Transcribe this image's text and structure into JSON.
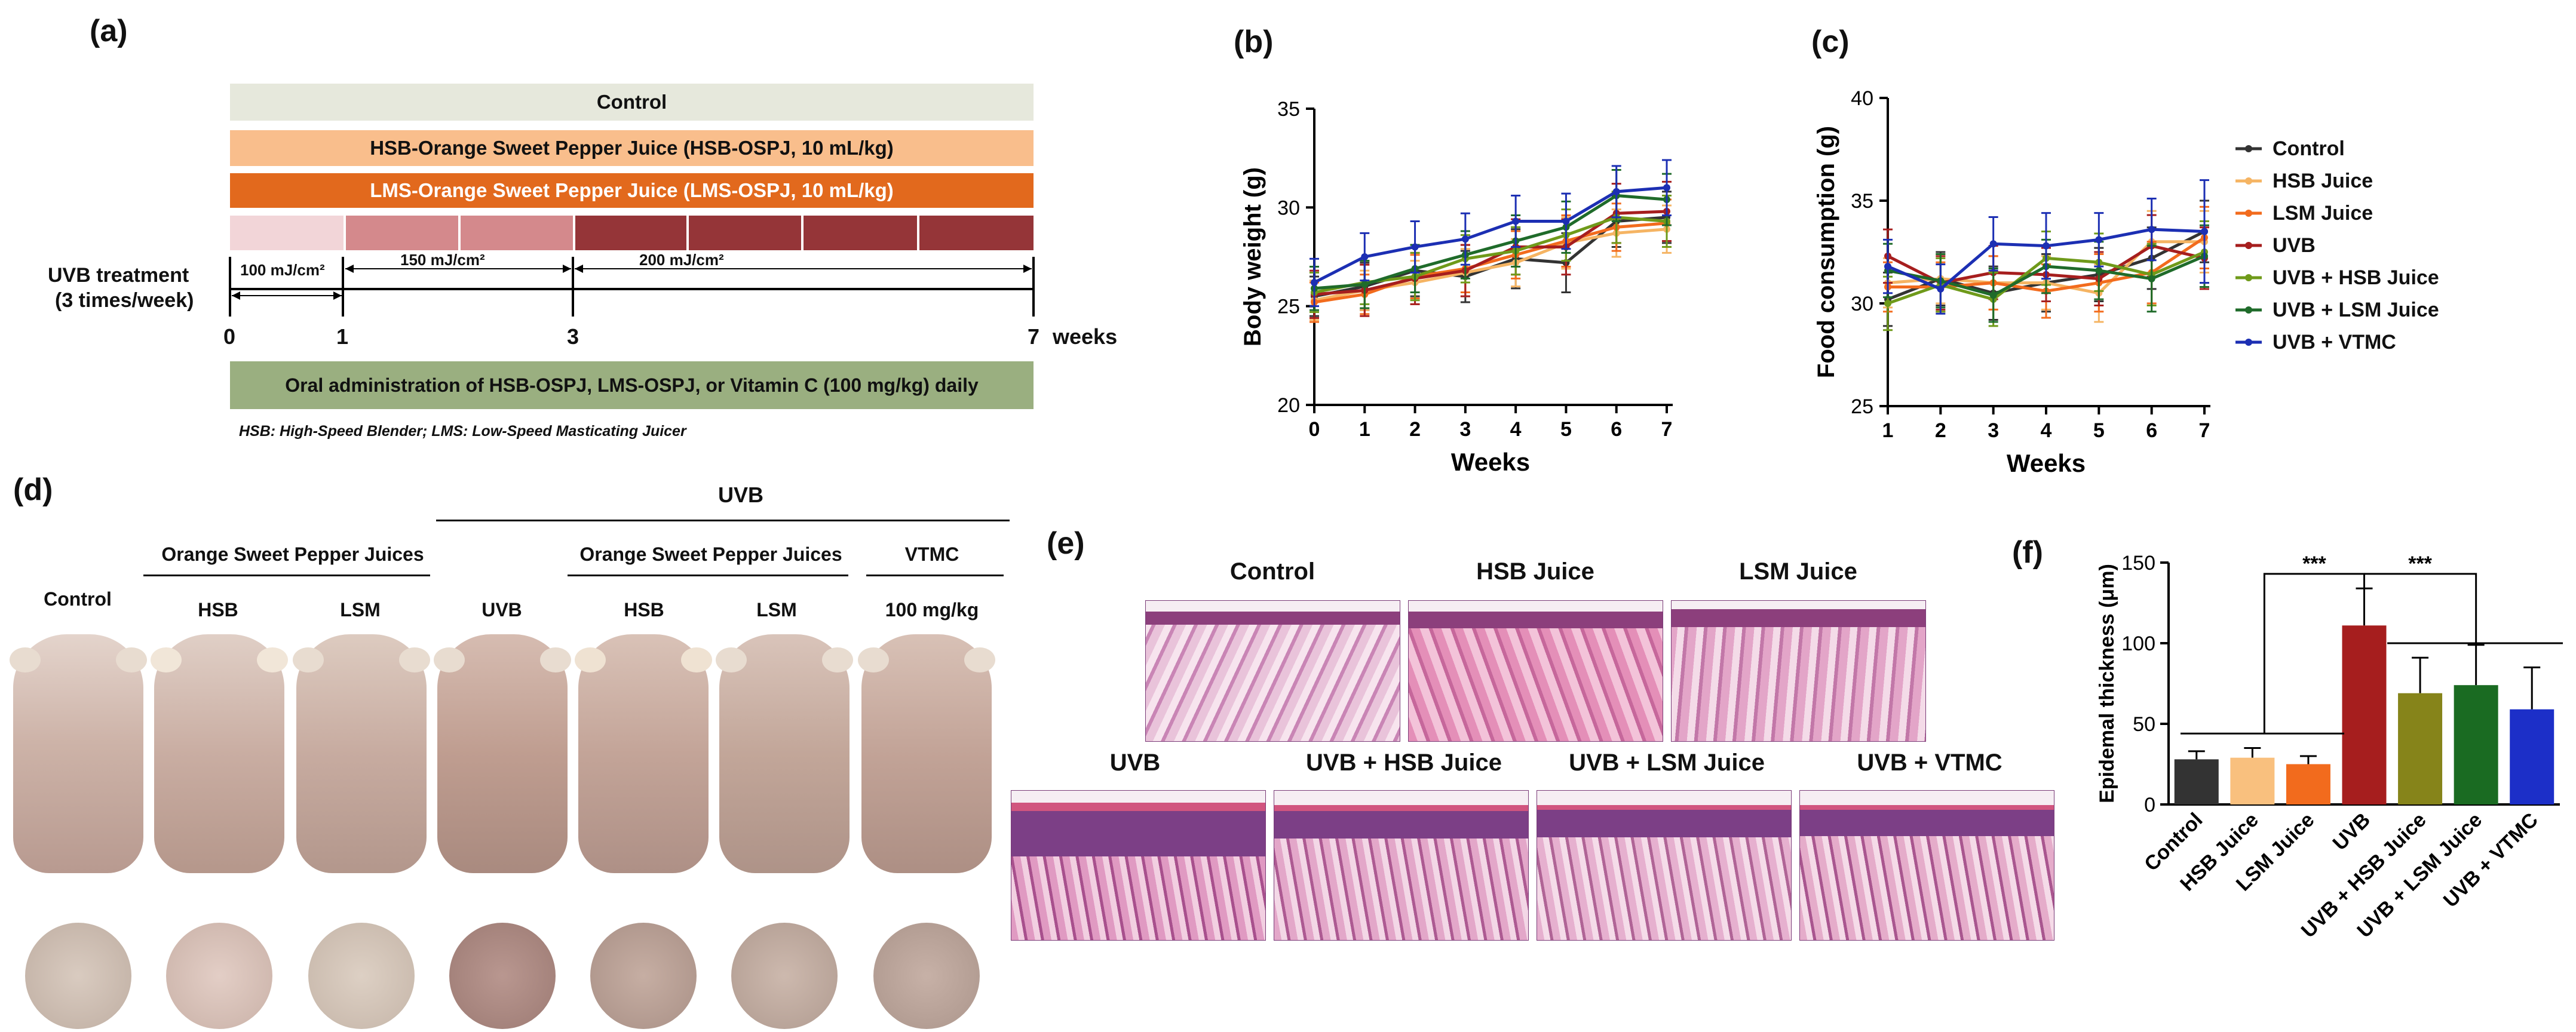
{
  "panel_a": {
    "label": "(a)",
    "bars": {
      "control": "Control",
      "hsb": "HSB-Orange Sweet Pepper Juice (HSB-OSPJ, 10 mL/kg)",
      "lms": "LMS-Orange Sweet Pepper Juice (LMS-OSPJ, 10 mL/kg)",
      "oral": "Oral administration of  HSB-OSPJ, LMS-OSPJ, or Vitamin C (100 mg/kg) daily"
    },
    "uvb_label_line1": "UVB treatment",
    "uvb_label_line2": "(3 times/week)",
    "dose1": "100 mJ/cm²",
    "dose2": "150 mJ/cm²",
    "dose3": "200 mJ/cm²",
    "ticks": [
      "0",
      "1",
      "3",
      "7"
    ],
    "weeks_label": "weeks",
    "footnote": "HSB: High-Speed Blender; LMS: Low-Speed Masticating Juicer",
    "colors": {
      "control": "#e6e8dc",
      "hsb": "#f9be8c",
      "lms": "#e2691d",
      "oral": "#9aaf80",
      "dose1": "#f2d5d8",
      "dose2": "#d4898c",
      "dose3": "#953538"
    }
  },
  "panel_b": {
    "label": "(b)"
  },
  "panel_c": {
    "label": "(c)"
  },
  "legend": {
    "entries": [
      {
        "name": "Control",
        "color": "#333333"
      },
      {
        "name": "HSB Juice",
        "color": "#f5b463"
      },
      {
        "name": "LSM Juice",
        "color": "#f26b1d"
      },
      {
        "name": "UVB",
        "color": "#a61e1e"
      },
      {
        "name": "UVB + HSB Juice",
        "color": "#6f9a1a"
      },
      {
        "name": "UVB + LSM Juice",
        "color": "#1f6b2a"
      },
      {
        "name": "UVB + VTMC",
        "color": "#1c2fb3"
      }
    ]
  },
  "panel_d": {
    "label": "(d)",
    "uvb_header": "UVB",
    "group_left": "Orange Sweet Pepper Juices",
    "group_right": "Orange Sweet Pepper Juices",
    "group_vtmc": "VTMC",
    "columns": [
      "Control",
      "HSB",
      "LSM",
      "UVB",
      "HSB",
      "LSM",
      "100 mg/kg"
    ]
  },
  "panel_e": {
    "label": "(e)",
    "top": [
      "Control",
      "HSB Juice",
      "LSM Juice"
    ],
    "bottom": [
      "UVB",
      "UVB + HSB Juice",
      "UVB + LSM Juice",
      "UVB + VTMC"
    ]
  },
  "panel_f": {
    "label": "(f)",
    "sig1": "***",
    "sig2": "***"
  },
  "chart_data": [
    {
      "type": "line",
      "title": "(b)",
      "xlabel": "Weeks",
      "ylabel": "Body weight (g)",
      "x": [
        0,
        1,
        2,
        3,
        4,
        5,
        6,
        7
      ],
      "xlim": [
        0,
        7
      ],
      "ylim": [
        20,
        35
      ],
      "yticks": [
        20,
        25,
        30,
        35
      ],
      "series": [
        {
          "name": "Control",
          "color": "#333333",
          "values": [
            25.5,
            26.0,
            26.8,
            26.5,
            27.4,
            27.2,
            29.3,
            29.5
          ],
          "err": [
            1.0,
            1.2,
            1.3,
            1.3,
            1.5,
            1.5,
            1.3,
            1.3
          ]
        },
        {
          "name": "HSB Juice",
          "color": "#f5b463",
          "values": [
            25.3,
            25.8,
            26.2,
            26.7,
            27.2,
            28.2,
            28.7,
            28.9
          ],
          "err": [
            1.0,
            1.0,
            1.1,
            1.2,
            1.2,
            1.3,
            1.2,
            1.2
          ]
        },
        {
          "name": "LSM Juice",
          "color": "#f26b1d",
          "values": [
            25.2,
            25.6,
            26.5,
            26.9,
            27.6,
            28.3,
            29.0,
            29.2
          ],
          "err": [
            1.0,
            1.0,
            1.1,
            1.2,
            1.2,
            1.3,
            1.2,
            1.2
          ]
        },
        {
          "name": "UVB",
          "color": "#a61e1e",
          "values": [
            25.6,
            25.8,
            26.4,
            26.8,
            28.0,
            28.0,
            29.7,
            29.8
          ],
          "err": [
            1.2,
            1.3,
            1.3,
            1.3,
            1.4,
            1.4,
            1.5,
            1.5
          ]
        },
        {
          "name": "UVB + HSB Juice",
          "color": "#6f9a1a",
          "values": [
            25.7,
            26.2,
            26.5,
            27.4,
            27.8,
            28.6,
            29.5,
            29.3
          ],
          "err": [
            1.0,
            1.1,
            1.2,
            1.2,
            1.2,
            1.3,
            1.3,
            1.3
          ]
        },
        {
          "name": "UVB + LSM Juice",
          "color": "#1f6b2a",
          "values": [
            25.9,
            26.1,
            26.9,
            27.6,
            28.3,
            29.0,
            30.6,
            30.4
          ],
          "err": [
            1.1,
            1.2,
            1.2,
            1.2,
            1.3,
            1.3,
            1.3,
            1.3
          ]
        },
        {
          "name": "UVB + VTMC",
          "color": "#1c2fb3",
          "values": [
            26.2,
            27.5,
            28.0,
            28.4,
            29.3,
            29.3,
            30.8,
            31.0
          ],
          "err": [
            1.2,
            1.2,
            1.3,
            1.3,
            1.3,
            1.4,
            1.3,
            1.4
          ]
        }
      ]
    },
    {
      "type": "line",
      "title": "(c)",
      "xlabel": "Weeks",
      "ylabel": "Food consumption (g)",
      "x": [
        1,
        2,
        3,
        4,
        5,
        6,
        7
      ],
      "xlim": [
        1,
        7
      ],
      "ylim": [
        25,
        40
      ],
      "yticks": [
        25,
        30,
        35,
        40
      ],
      "series": [
        {
          "name": "Control",
          "color": "#333333",
          "values": [
            30.2,
            31.2,
            30.5,
            31.0,
            31.4,
            32.2,
            33.5
          ],
          "err": [
            1.3,
            1.3,
            1.3,
            1.4,
            1.3,
            1.5,
            1.5
          ]
        },
        {
          "name": "HSB Juice",
          "color": "#f5b463",
          "values": [
            31.0,
            31.2,
            31.0,
            31.0,
            30.5,
            33.0,
            33.0
          ],
          "err": [
            1.2,
            1.2,
            1.3,
            1.3,
            1.4,
            1.5,
            1.5
          ]
        },
        {
          "name": "LSM Juice",
          "color": "#f26b1d",
          "values": [
            30.8,
            30.8,
            31.0,
            30.6,
            31.0,
            31.5,
            33.2
          ],
          "err": [
            1.2,
            1.2,
            1.3,
            1.3,
            1.4,
            1.5,
            1.5
          ]
        },
        {
          "name": "UVB",
          "color": "#a61e1e",
          "values": [
            32.3,
            31.0,
            31.5,
            31.4,
            31.2,
            32.8,
            32.2
          ],
          "err": [
            1.3,
            1.3,
            1.3,
            1.3,
            1.3,
            1.5,
            1.5
          ]
        },
        {
          "name": "UVB + HSB Juice",
          "color": "#6f9a1a",
          "values": [
            30.0,
            30.9,
            30.2,
            32.2,
            32.0,
            31.4,
            32.5
          ],
          "err": [
            1.3,
            1.3,
            1.3,
            1.3,
            1.4,
            1.5,
            1.5
          ]
        },
        {
          "name": "UVB + LSM Juice",
          "color": "#1f6b2a",
          "values": [
            31.6,
            31.1,
            30.4,
            31.8,
            31.6,
            31.2,
            32.3
          ],
          "err": [
            1.3,
            1.3,
            1.3,
            1.3,
            1.4,
            1.6,
            1.5
          ]
        },
        {
          "name": "UVB + VTMC",
          "color": "#1c2fb3",
          "values": [
            31.8,
            30.7,
            32.9,
            32.8,
            33.1,
            33.6,
            33.5
          ],
          "err": [
            1.3,
            1.2,
            1.3,
            1.6,
            1.3,
            1.5,
            2.5
          ]
        }
      ]
    },
    {
      "type": "bar",
      "title": "(f)",
      "xlabel": "",
      "ylabel": "Epidemal thickness (μm)",
      "ylim": [
        0,
        150
      ],
      "yticks": [
        0,
        50,
        100,
        150
      ],
      "categories": [
        "Control",
        "HSB Juice",
        "LSM Juice",
        "UVB",
        "UVB + HSB Juice",
        "UVB + LSM Juice",
        "UVB + VTMC"
      ],
      "values": [
        28,
        29,
        25,
        111,
        69,
        74,
        59
      ],
      "err": [
        5,
        6,
        5,
        23,
        22,
        25,
        26
      ],
      "colors": [
        "#333333",
        "#f9c07e",
        "#f26b1d",
        "#a61e1e",
        "#86841a",
        "#1a6b22",
        "#1c2fc8"
      ]
    }
  ]
}
